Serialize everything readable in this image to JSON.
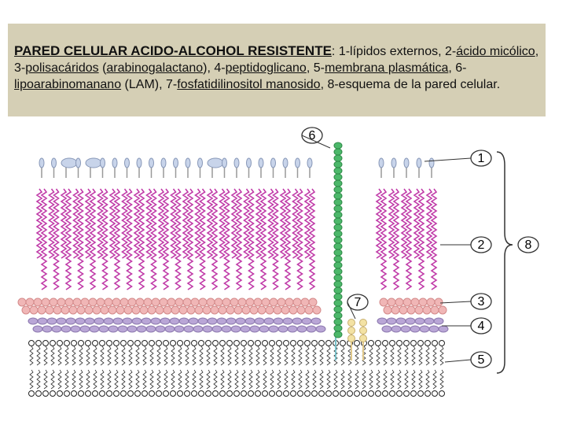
{
  "caption": [
    {
      "text": "PARED CELULAR ACIDO-ALCOHOL RESISTENTE",
      "underlined": true,
      "bold": true
    },
    {
      "text": ": 1-lípidos externos, 2-"
    },
    {
      "text": "ácido micólico",
      "underlined": true
    },
    {
      "text": ", 3-"
    },
    {
      "text": "polisacáridos",
      "underlined": true
    },
    {
      "text": " ("
    },
    {
      "text": "arabinogalactano",
      "underlined": true
    },
    {
      "text": "), 4-"
    },
    {
      "text": "peptidoglicano",
      "underlined": true
    },
    {
      "text": ", 5-"
    },
    {
      "text": "membrana plasmática",
      "underlined": true
    },
    {
      "text": ", 6-"
    },
    {
      "text": "lipoarabinomanano",
      "underlined": true
    },
    {
      "text": " (LAM), 7-"
    },
    {
      "text": "fosfatidilinositol manosido",
      "underlined": true
    },
    {
      "text": ", 8-esquema de la pared celular."
    }
  ],
  "labels": [
    "1",
    "2",
    "3",
    "4",
    "5",
    "6",
    "7",
    "8"
  ]
}
